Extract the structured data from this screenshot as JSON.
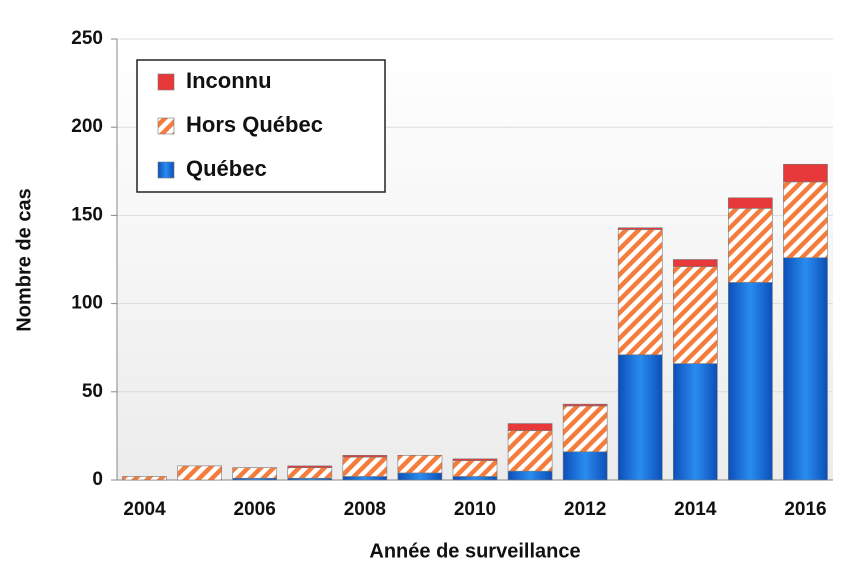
{
  "chart_data": {
    "type": "bar",
    "stacked": true,
    "xlabel": "Année de surveillance",
    "ylabel": "Nombre de cas",
    "categories": [
      "2004",
      null,
      "2006",
      null,
      "2008",
      null,
      "2010",
      null,
      "2012",
      null,
      "2014",
      null,
      "2016"
    ],
    "series": [
      {
        "name": "Québec",
        "color": "#1a6fd6",
        "values": [
          0,
          0,
          1,
          1,
          2,
          4,
          2,
          5,
          16,
          71,
          66,
          112,
          126
        ]
      },
      {
        "name": "Hors Québec",
        "color": "#f47c3c",
        "hatch": true,
        "values": [
          2,
          8,
          6,
          6,
          11,
          10,
          9,
          23,
          26,
          71,
          55,
          42,
          43
        ]
      },
      {
        "name": "Inconnu",
        "color": "#e8393a",
        "values": [
          0,
          0,
          0,
          1,
          1,
          0,
          1,
          4,
          1,
          1,
          4,
          6,
          10
        ]
      }
    ],
    "ylim": [
      0,
      250
    ],
    "yticks": [
      0,
      50,
      100,
      150,
      200,
      250
    ],
    "grid": true,
    "legend": "upper left"
  }
}
